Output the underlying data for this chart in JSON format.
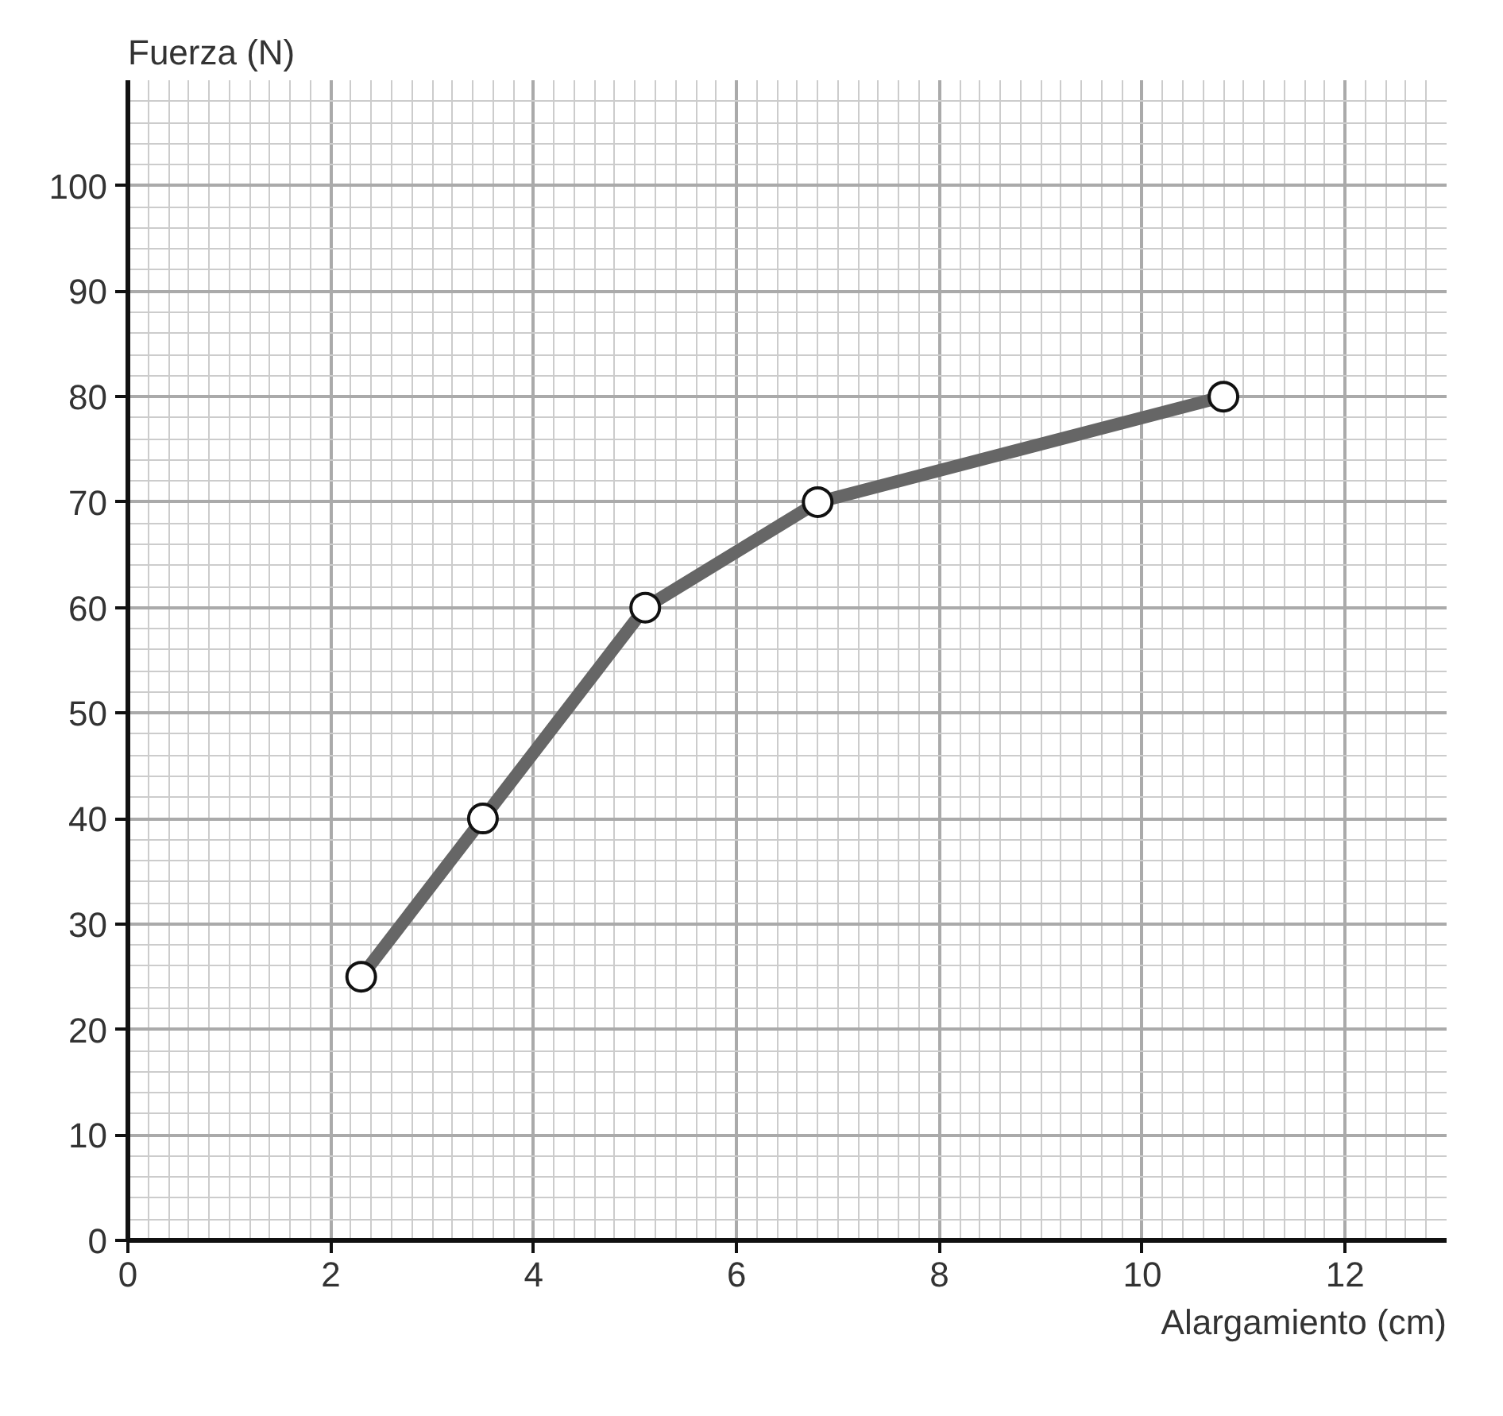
{
  "chart_data": {
    "type": "line",
    "xlabel": "Alargamiento (cm)",
    "ylabel": "Fuerza (N)",
    "x": [
      2.3,
      3.5,
      5.1,
      6.8,
      10.8
    ],
    "series": [
      {
        "color": "#666666",
        "values": [
          25,
          40,
          60,
          70,
          80
        ]
      }
    ],
    "xlim": [
      0,
      13
    ],
    "ylim": [
      0,
      110
    ],
    "xticks": [
      0,
      2,
      4,
      6,
      8,
      10,
      12
    ],
    "yticks": [
      0,
      10,
      20,
      30,
      40,
      50,
      60,
      70,
      80,
      90,
      100
    ],
    "grid": true,
    "marker": "circle",
    "line_style": "solid"
  }
}
